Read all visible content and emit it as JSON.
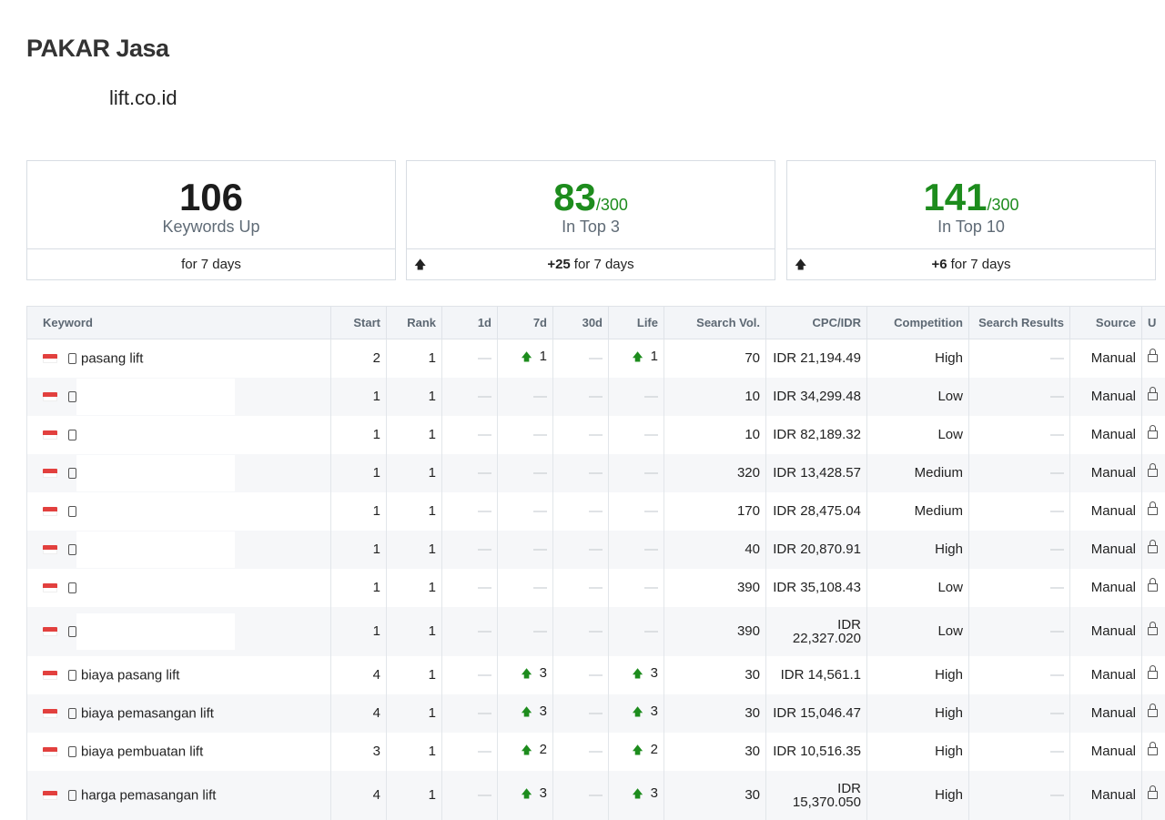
{
  "header": {
    "project_name": "PAKAR Jasa",
    "domain": "lift.co.id"
  },
  "cards": [
    {
      "value": "106",
      "denominator": "",
      "label": "Keywords Up",
      "change": "",
      "period": "for 7 days",
      "arrow": false
    },
    {
      "value": "83",
      "denominator": "/300",
      "label": "In Top 3",
      "change": "+25",
      "period": "for 7 days",
      "arrow": true
    },
    {
      "value": "141",
      "denominator": "/300",
      "label": "In Top 10",
      "change": "+6",
      "period": "for 7 days",
      "arrow": true
    }
  ],
  "table": {
    "columns": [
      "Keyword",
      "Start",
      "Rank",
      "1d",
      "7d",
      "30d",
      "Life",
      "Search Vol.",
      "CPC/IDR",
      "Competition",
      "Search Results",
      "Source",
      "U"
    ],
    "empty_glyph": "—",
    "up_arrow": "🡅",
    "rows": [
      {
        "keyword": "pasang lift",
        "start": "2",
        "rank": "1",
        "d1": "",
        "d7": "1",
        "d30": "",
        "life": "1",
        "volume": "70",
        "cpc": "IDR 21,194.49",
        "competition": "High",
        "results": "",
        "source": "Manual"
      },
      {
        "keyword": "",
        "start": "1",
        "rank": "1",
        "d1": "",
        "d7": "",
        "d30": "",
        "life": "",
        "volume": "10",
        "cpc": "IDR 34,299.48",
        "competition": "Low",
        "results": "",
        "source": "Manual"
      },
      {
        "keyword": "",
        "start": "1",
        "rank": "1",
        "d1": "",
        "d7": "",
        "d30": "",
        "life": "",
        "volume": "10",
        "cpc": "IDR 82,189.32",
        "competition": "Low",
        "results": "",
        "source": "Manual"
      },
      {
        "keyword": "",
        "start": "1",
        "rank": "1",
        "d1": "",
        "d7": "",
        "d30": "",
        "life": "",
        "volume": "320",
        "cpc": "IDR 13,428.57",
        "competition": "Medium",
        "results": "",
        "source": "Manual"
      },
      {
        "keyword": "",
        "start": "1",
        "rank": "1",
        "d1": "",
        "d7": "",
        "d30": "",
        "life": "",
        "volume": "170",
        "cpc": "IDR 28,475.04",
        "competition": "Medium",
        "results": "",
        "source": "Manual"
      },
      {
        "keyword": "",
        "start": "1",
        "rank": "1",
        "d1": "",
        "d7": "",
        "d30": "",
        "life": "",
        "volume": "40",
        "cpc": "IDR 20,870.91",
        "competition": "High",
        "results": "",
        "source": "Manual"
      },
      {
        "keyword": "",
        "start": "1",
        "rank": "1",
        "d1": "",
        "d7": "",
        "d30": "",
        "life": "",
        "volume": "390",
        "cpc": "IDR 35,108.43",
        "competition": "Low",
        "results": "",
        "source": "Manual"
      },
      {
        "keyword": "",
        "start": "1",
        "rank": "1",
        "d1": "",
        "d7": "",
        "d30": "",
        "life": "",
        "volume": "390",
        "cpc": "IDR 22,327.020",
        "competition": "Low",
        "results": "",
        "source": "Manual"
      },
      {
        "keyword": "biaya pasang lift",
        "start": "4",
        "rank": "1",
        "d1": "",
        "d7": "3",
        "d30": "",
        "life": "3",
        "volume": "30",
        "cpc": "IDR 14,561.1",
        "competition": "High",
        "results": "",
        "source": "Manual"
      },
      {
        "keyword": "biaya pemasangan lift",
        "start": "4",
        "rank": "1",
        "d1": "",
        "d7": "3",
        "d30": "",
        "life": "3",
        "volume": "30",
        "cpc": "IDR 15,046.47",
        "competition": "High",
        "results": "",
        "source": "Manual"
      },
      {
        "keyword": "biaya pembuatan lift",
        "start": "3",
        "rank": "1",
        "d1": "",
        "d7": "2",
        "d30": "",
        "life": "2",
        "volume": "30",
        "cpc": "IDR 10,516.35",
        "competition": "High",
        "results": "",
        "source": "Manual"
      },
      {
        "keyword": "harga pemasangan lift",
        "start": "4",
        "rank": "1",
        "d1": "",
        "d7": "3",
        "d30": "",
        "life": "3",
        "volume": "30",
        "cpc": "IDR 15,370.050",
        "competition": "High",
        "results": "",
        "source": "Manual"
      }
    ]
  },
  "colors": {
    "accent_green": "#1d8c1d",
    "flag_red": "#e2403e"
  },
  "icons": {
    "flag": "indonesia-flag-icon",
    "device": "mobile-device-icon",
    "lock": "lock-icon",
    "trend": "arrow-up-icon"
  }
}
